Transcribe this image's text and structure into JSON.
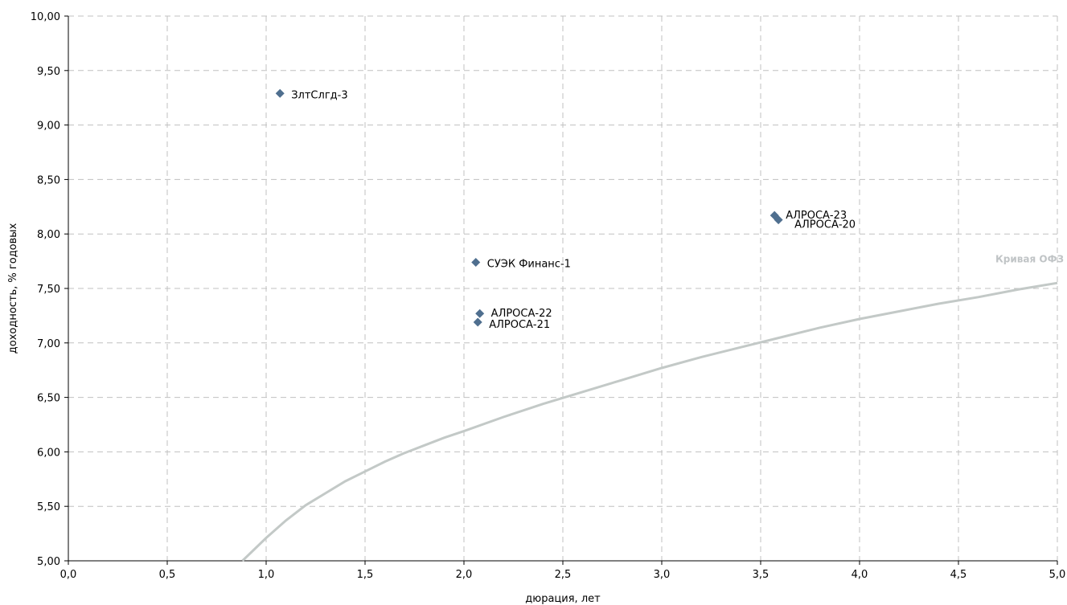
{
  "chart_data": {
    "type": "scatter",
    "xlabel": "дюрация, лет",
    "ylabel": "доходность, % годовых",
    "xlim": [
      0,
      5
    ],
    "ylim": [
      5,
      10
    ],
    "x_ticks": [
      0,
      0.5,
      1,
      1.5,
      2,
      2.5,
      3,
      3.5,
      4,
      4.5,
      5
    ],
    "y_ticks": [
      5,
      5.5,
      6,
      6.5,
      7,
      7.5,
      8,
      8.5,
      9,
      9.5,
      10
    ],
    "x_tick_labels": [
      "0,0",
      "0,5",
      "1,0",
      "1,5",
      "2,0",
      "2,5",
      "3,0",
      "3,5",
      "4,0",
      "4,5",
      "5,0"
    ],
    "y_tick_labels": [
      "5,00",
      "5,50",
      "6,00",
      "6,50",
      "7,00",
      "7,50",
      "8,00",
      "8,50",
      "9,00",
      "9,50",
      "10,00"
    ],
    "grid": true,
    "colors": {
      "points": "#4f6f8f",
      "curve": "#c3c9c7",
      "curve_label": "#c0c4c6",
      "grid": "#c0c0c0"
    },
    "points": [
      {
        "label": "ЗлтСлгд-3",
        "x": 1.07,
        "y": 9.29
      },
      {
        "label": "СУЭК Финанс-1",
        "x": 2.06,
        "y": 7.74
      },
      {
        "label": "АЛРОСА-22",
        "x": 2.08,
        "y": 7.27
      },
      {
        "label": "АЛРОСА-21",
        "x": 2.07,
        "y": 7.19
      },
      {
        "label": "АЛРОСА-23",
        "x": 3.57,
        "y": 8.17
      },
      {
        "label": "АЛРОСА-20",
        "x": 3.59,
        "y": 8.13
      }
    ],
    "curve": {
      "name": "Кривая ОФЗ",
      "x": [
        0.88,
        1.0,
        1.1,
        1.2,
        1.3,
        1.4,
        1.5,
        1.6,
        1.7,
        1.8,
        1.9,
        2.0,
        2.2,
        2.4,
        2.6,
        2.8,
        3.0,
        3.2,
        3.4,
        3.6,
        3.8,
        4.0,
        4.2,
        4.4,
        4.6,
        4.8,
        5.0
      ],
      "y": [
        5.0,
        5.21,
        5.37,
        5.51,
        5.62,
        5.73,
        5.82,
        5.91,
        5.99,
        6.06,
        6.13,
        6.19,
        6.32,
        6.44,
        6.55,
        6.66,
        6.77,
        6.87,
        6.96,
        7.05,
        7.14,
        7.22,
        7.29,
        7.36,
        7.42,
        7.49,
        7.55
      ]
    }
  }
}
